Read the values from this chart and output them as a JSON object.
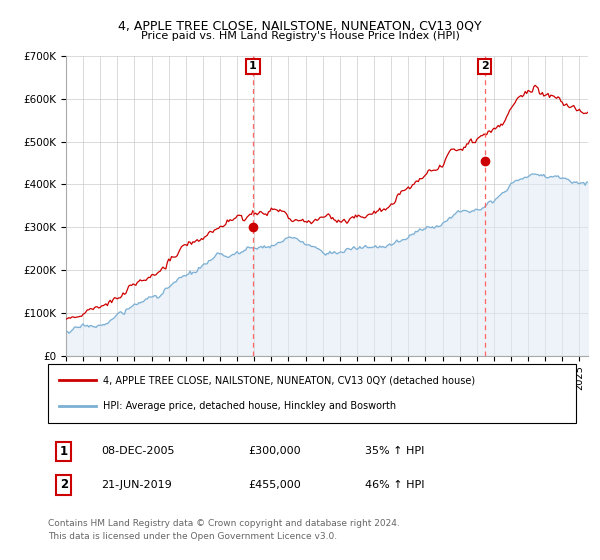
{
  "title": "4, APPLE TREE CLOSE, NAILSTONE, NUNEATON, CV13 0QY",
  "subtitle": "Price paid vs. HM Land Registry's House Price Index (HPI)",
  "ylim": [
    0,
    700000
  ],
  "yticks": [
    0,
    100000,
    200000,
    300000,
    400000,
    500000,
    600000,
    700000
  ],
  "ytick_labels": [
    "£0",
    "£100K",
    "£200K",
    "£300K",
    "£400K",
    "£500K",
    "£600K",
    "£700K"
  ],
  "xlim_start": 1995.0,
  "xlim_end": 2025.5,
  "sale1_x": 2005.92,
  "sale1_y": 300000,
  "sale1_label": "1",
  "sale1_date": "08-DEC-2005",
  "sale1_price": "£300,000",
  "sale1_hpi": "35% ↑ HPI",
  "sale2_x": 2019.47,
  "sale2_y": 455000,
  "sale2_label": "2",
  "sale2_date": "21-JUN-2019",
  "sale2_price": "£455,000",
  "sale2_hpi": "46% ↑ HPI",
  "property_line_color": "#cc0000",
  "hpi_line_color": "#7bafd4",
  "hpi_fill_color": "#dce9f5",
  "vline_color": "#ff6666",
  "legend_property": "4, APPLE TREE CLOSE, NAILSTONE, NUNEATON, CV13 0QY (detached house)",
  "legend_hpi": "HPI: Average price, detached house, Hinckley and Bosworth",
  "footer1": "Contains HM Land Registry data © Crown copyright and database right 2024.",
  "footer2": "This data is licensed under the Open Government Licence v3.0.",
  "background_color": "#ffffff",
  "plot_bg_color": "#ffffff",
  "grid_color": "#cccccc"
}
